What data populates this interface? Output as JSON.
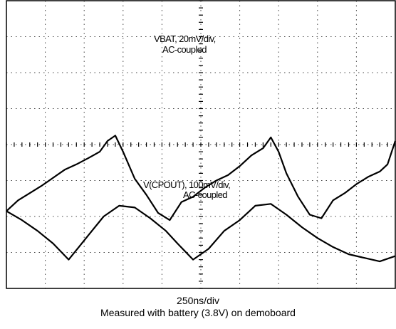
{
  "chart_data": {
    "type": "line",
    "title": "",
    "grid": true,
    "divisions": {
      "x": 10,
      "y": 8
    },
    "series": [
      {
        "label_lines": [
          "VBAT, 20mV/div,",
          "AC-coupled"
        ],
        "color": "#000000",
        "x": [
          0,
          0.3,
          0.6,
          0.9,
          1.1,
          1.3,
          1.5,
          1.8,
          2.1,
          2.4,
          2.6,
          2.8,
          3.0,
          3.3,
          3.6,
          3.9,
          4.2,
          4.5,
          4.8,
          5.1,
          5.4,
          5.7,
          6.0,
          6.3,
          6.6,
          6.8,
          7.0,
          7.2,
          7.5,
          7.8,
          8.1,
          8.4,
          8.7,
          9.0,
          9.3,
          9.6,
          9.8,
          10.0
        ],
        "y": [
          -1.85,
          -1.55,
          -1.35,
          -1.15,
          -1.0,
          -0.85,
          -0.7,
          -0.55,
          -0.38,
          -0.2,
          0.1,
          0.25,
          -0.2,
          -0.95,
          -1.4,
          -1.9,
          -2.1,
          -1.6,
          -1.45,
          -1.2,
          -1.0,
          -0.85,
          -0.6,
          -0.3,
          -0.1,
          0.2,
          -0.2,
          -0.8,
          -1.45,
          -1.95,
          -2.05,
          -1.55,
          -1.35,
          -1.1,
          -0.9,
          -0.75,
          -0.55,
          0.1
        ]
      },
      {
        "label_lines": [
          "V(CPOUT), 100mV/div,",
          "AC-coupled"
        ],
        "color": "#000000",
        "x": [
          0,
          0.4,
          0.8,
          1.2,
          1.6,
          1.9,
          2.2,
          2.5,
          2.9,
          3.3,
          3.7,
          4.1,
          4.4,
          4.8,
          5.2,
          5.6,
          6.0,
          6.4,
          6.8,
          7.2,
          7.6,
          8.0,
          8.4,
          8.8,
          9.2,
          9.6,
          10.0
        ],
        "y": [
          -1.85,
          -2.1,
          -2.4,
          -2.75,
          -3.2,
          -2.8,
          -2.4,
          -2.0,
          -1.7,
          -1.75,
          -2.05,
          -2.4,
          -2.75,
          -3.2,
          -2.9,
          -2.4,
          -2.1,
          -1.7,
          -1.65,
          -1.95,
          -2.3,
          -2.6,
          -2.85,
          -3.05,
          -3.15,
          -3.25,
          -3.1
        ]
      }
    ],
    "captions": [
      "250ns/div",
      "Measured with battery (3.8V) on demoboard"
    ]
  }
}
